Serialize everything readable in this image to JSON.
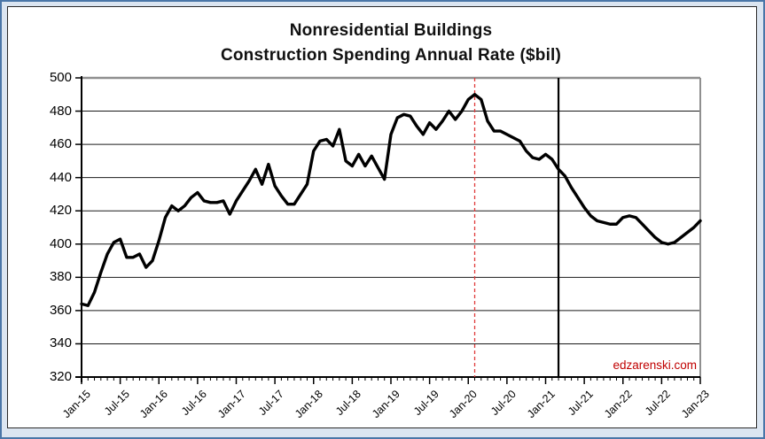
{
  "window": {
    "frame_background": "#dbe5f1",
    "frame_border_color": "#4a76a8",
    "panel_background": "#ffffff"
  },
  "chart_data": {
    "type": "line",
    "title_line1": "Nonresidential Buildings",
    "title_line2": "Construction Spending Annual Rate ($bil)",
    "xlabel": "",
    "ylabel": "",
    "ylim": [
      320,
      500
    ],
    "y_tick_step": 20,
    "y_ticks": [
      500,
      480,
      460,
      440,
      420,
      400,
      380,
      360,
      340,
      320
    ],
    "grid": "horizontal",
    "x_start": "Jan-15",
    "x_end": "Jan-23",
    "x_interval": "monthly",
    "x_major_ticklabels": [
      "Jan-15",
      "Jul-15",
      "Jan-16",
      "Jul-16",
      "Jan-17",
      "Jul-17",
      "Jan-18",
      "Jul-18",
      "Jan-19",
      "Jul-19",
      "Jan-20",
      "Jul-20",
      "Jan-21",
      "Jul-21",
      "Jan-22",
      "Jul-22",
      "Jan-23"
    ],
    "series": [
      {
        "name": "Nonresidential Buildings Construction Spending Annual Rate",
        "color": "#000000",
        "values": [
          364,
          363,
          371,
          383,
          394,
          401,
          403,
          392,
          392,
          394,
          386,
          390,
          402,
          416,
          423,
          420,
          423,
          428,
          431,
          426,
          425,
          425,
          426,
          418,
          426,
          432,
          438,
          445,
          436,
          448,
          435,
          429,
          424,
          424,
          430,
          436,
          456,
          462,
          463,
          459,
          469,
          450,
          447,
          454,
          447,
          453,
          446,
          439,
          466,
          476,
          478,
          477,
          471,
          466,
          473,
          469,
          474,
          480,
          475,
          480,
          487,
          490,
          487,
          474,
          468,
          468,
          466,
          464,
          462,
          456,
          452,
          451,
          454,
          451,
          445,
          441,
          434,
          428,
          422,
          417,
          414,
          413,
          412,
          412,
          416,
          417,
          416,
          412,
          408,
          404,
          401,
          400,
          401,
          404,
          407,
          410,
          414
        ]
      }
    ],
    "annotations": {
      "red_dashed_vline": {
        "at_label": "Feb-20",
        "color": "#e03a3a",
        "style": "dashed"
      },
      "black_vline": {
        "at_label": "Mar-21",
        "color": "#000000",
        "style": "solid"
      },
      "watermark": {
        "text": "edzarenski.com",
        "color": "#c00000"
      }
    }
  }
}
